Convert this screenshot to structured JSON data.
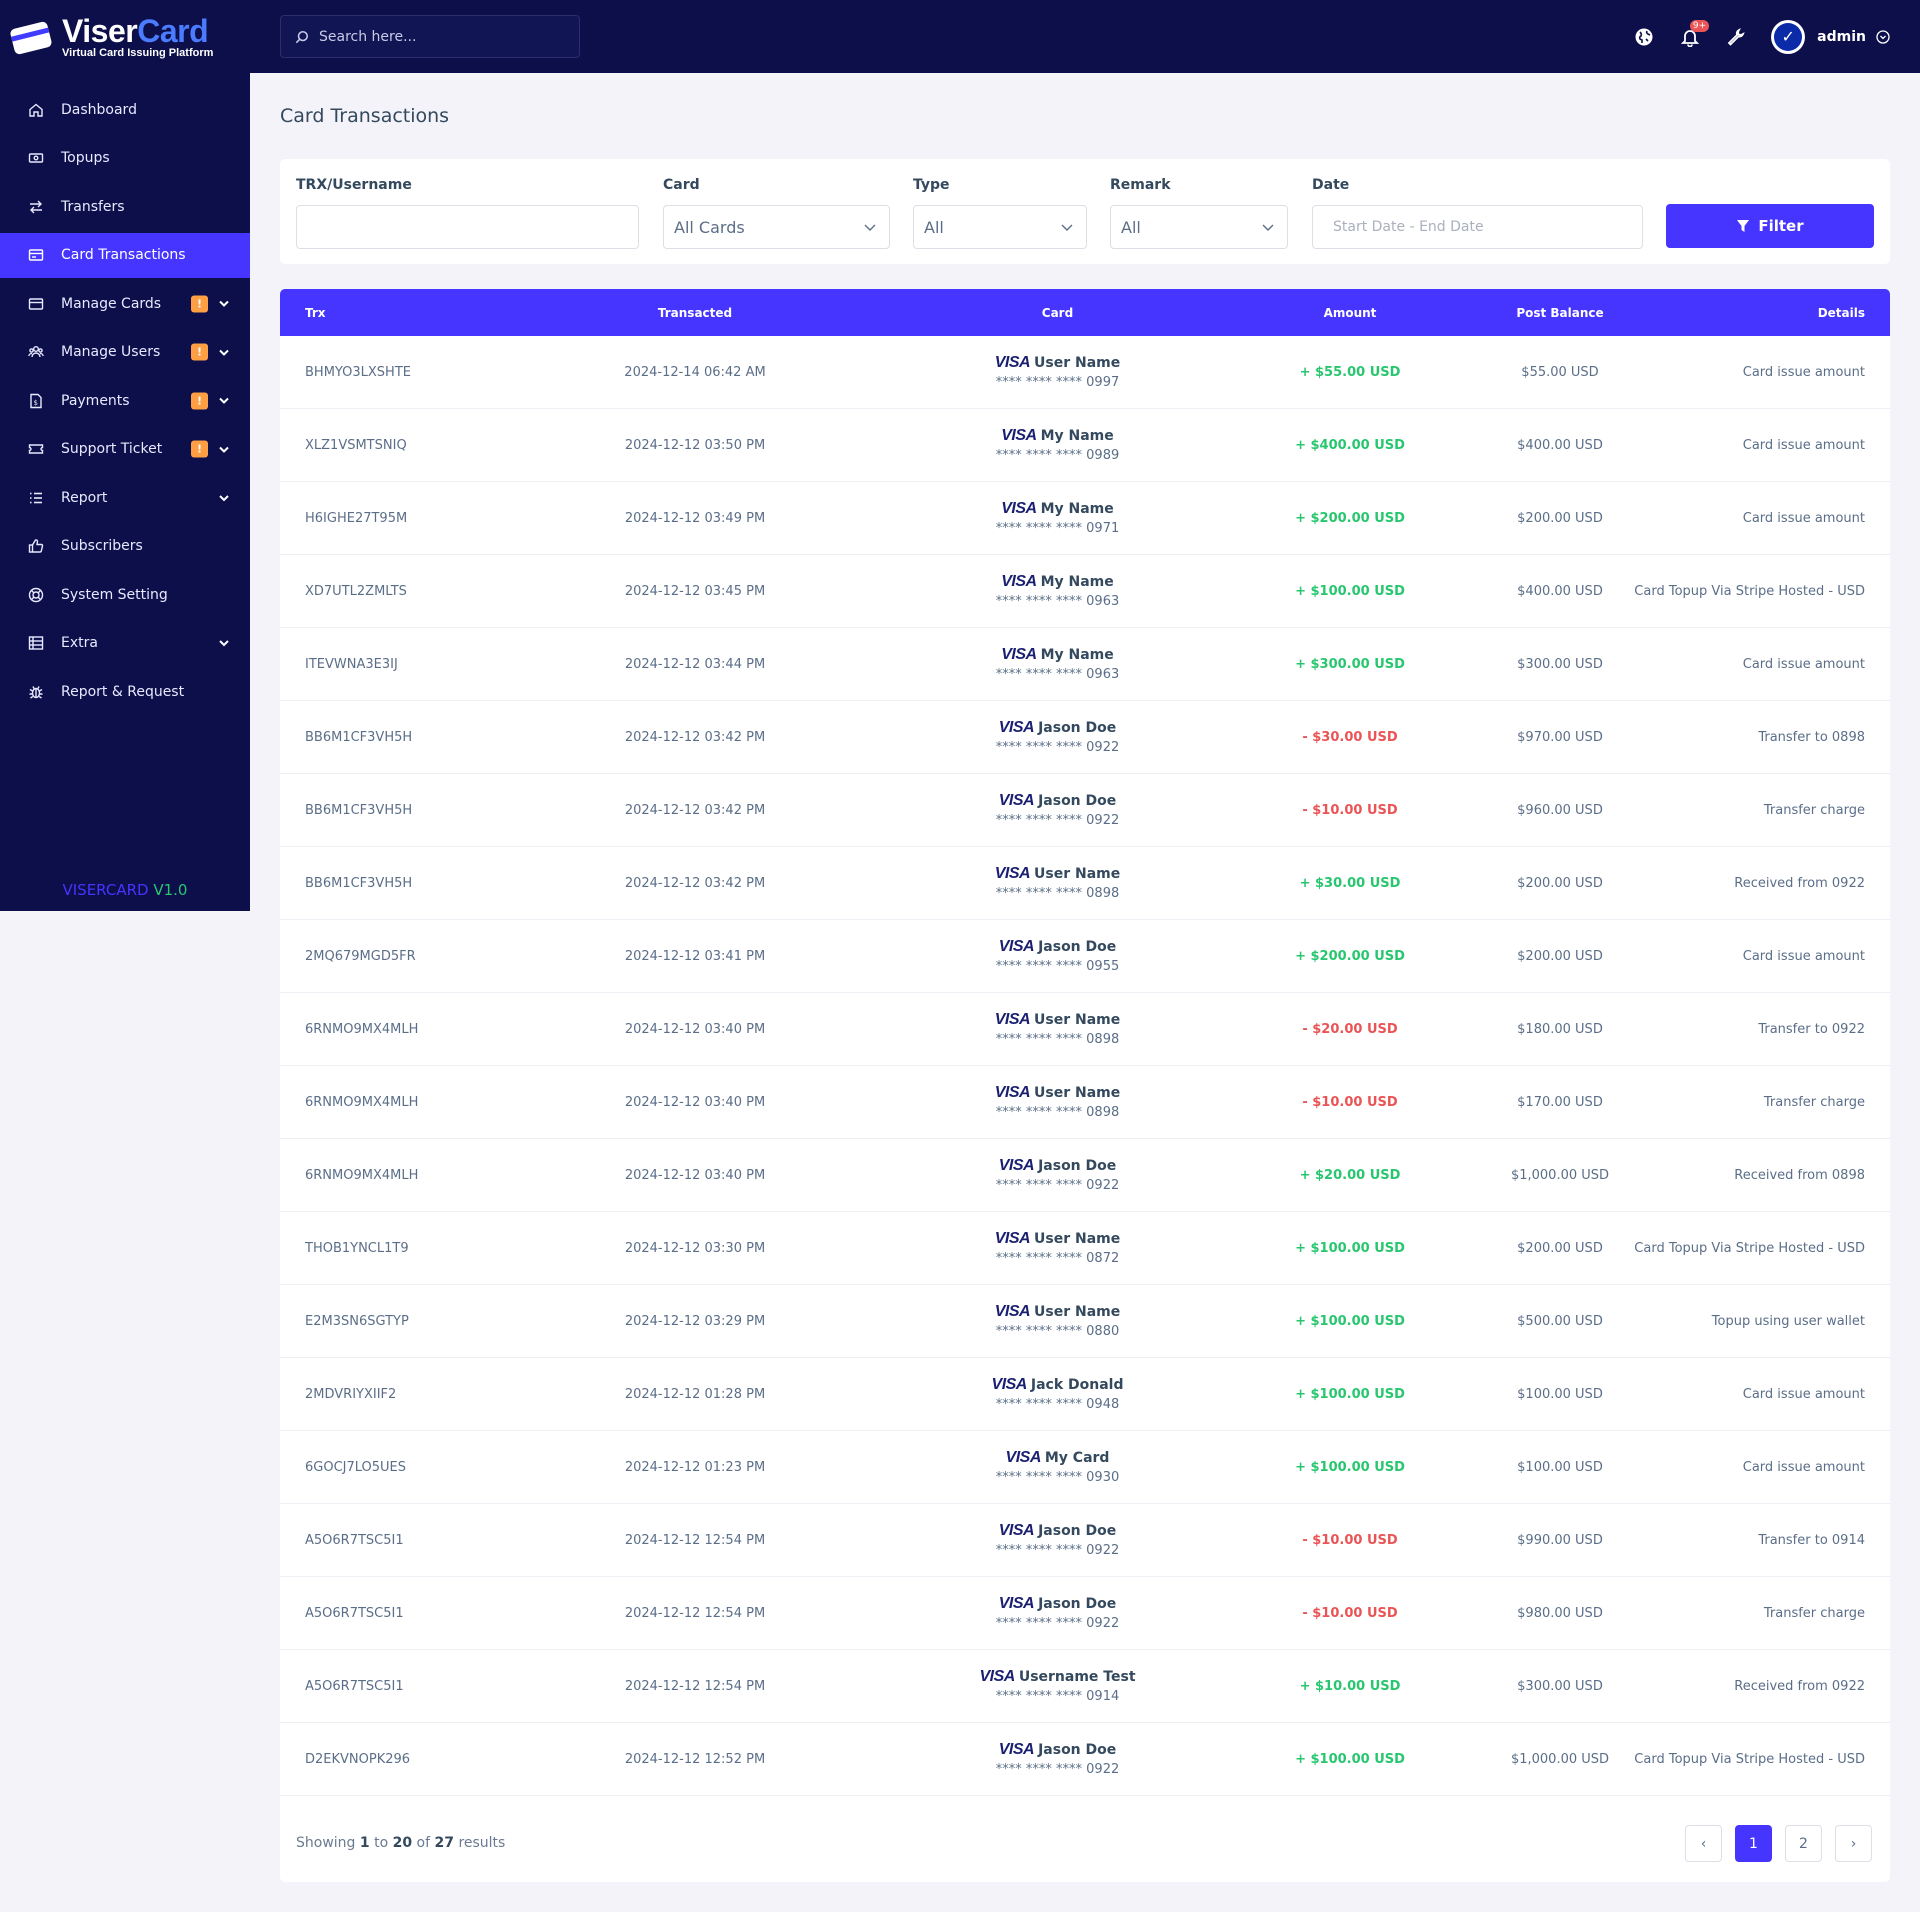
{
  "brand": {
    "name_part1": "Viser",
    "name_part2": "Card",
    "tagline": "Virtual Card Issuing Platform",
    "version_part1": "VISERCARD",
    "version_part2": "V1.0",
    "accent_color": "#4634ff",
    "sidebar_color": "#0c0f4a"
  },
  "sidebar": {
    "items": [
      {
        "label": "Dashboard",
        "icon": "home-icon",
        "active": false,
        "badge": "",
        "has_chevron": false
      },
      {
        "label": "Topups",
        "icon": "money-icon",
        "active": false,
        "badge": "",
        "has_chevron": false
      },
      {
        "label": "Transfers",
        "icon": "exchange-icon",
        "active": false,
        "badge": "",
        "has_chevron": false
      },
      {
        "label": "Card Transactions",
        "icon": "card-list-icon",
        "active": true,
        "badge": "",
        "has_chevron": false
      },
      {
        "label": "Manage Cards",
        "icon": "credit-card-icon",
        "active": false,
        "badge": "!",
        "has_chevron": true
      },
      {
        "label": "Manage Users",
        "icon": "users-icon",
        "active": false,
        "badge": "!",
        "has_chevron": true
      },
      {
        "label": "Payments",
        "icon": "payment-icon",
        "active": false,
        "badge": "!",
        "has_chevron": true
      },
      {
        "label": "Support Ticket",
        "icon": "ticket-icon",
        "active": false,
        "badge": "!",
        "has_chevron": true
      },
      {
        "label": "Report",
        "icon": "list-icon",
        "active": false,
        "badge": "",
        "has_chevron": true
      },
      {
        "label": "Subscribers",
        "icon": "thumbs-up-icon",
        "active": false,
        "badge": "",
        "has_chevron": false
      },
      {
        "label": "System Setting",
        "icon": "life-ring-icon",
        "active": false,
        "badge": "",
        "has_chevron": false
      },
      {
        "label": "Extra",
        "icon": "server-icon",
        "active": false,
        "badge": "",
        "has_chevron": true
      },
      {
        "label": "Report & Request",
        "icon": "bug-icon",
        "active": false,
        "badge": "",
        "has_chevron": false
      }
    ]
  },
  "topbar": {
    "search_placeholder": "Search here...",
    "notification_count": "9+",
    "username": "admin"
  },
  "page": {
    "title": "Card Transactions"
  },
  "filters": {
    "trx_label": "TRX/Username",
    "trx_value": "",
    "card_label": "Card",
    "card_value": "All Cards",
    "type_label": "Type",
    "type_value": "All",
    "remark_label": "Remark",
    "remark_value": "All",
    "date_label": "Date",
    "date_placeholder": "Start Date - End Date",
    "filter_button": "Filter"
  },
  "table": {
    "headers": [
      "Trx",
      "Transacted",
      "Card",
      "Amount",
      "Post Balance",
      "Details"
    ],
    "rows": [
      {
        "trx": "BHMYO3LXSHTE",
        "date": "2024-12-14 06:42 AM",
        "card_brand": "VISA",
        "card_name": "User Name",
        "card_number": "**** **** **** 0997",
        "amount": "+ $55.00 USD",
        "sign": "plus",
        "balance": "$55.00 USD",
        "details": "Card issue amount"
      },
      {
        "trx": "XLZ1VSMTSNIQ",
        "date": "2024-12-12 03:50 PM",
        "card_brand": "VISA",
        "card_name": "My Name",
        "card_number": "**** **** **** 0989",
        "amount": "+ $400.00 USD",
        "sign": "plus",
        "balance": "$400.00 USD",
        "details": "Card issue amount"
      },
      {
        "trx": "H6IGHE27T95M",
        "date": "2024-12-12 03:49 PM",
        "card_brand": "VISA",
        "card_name": "My Name",
        "card_number": "**** **** **** 0971",
        "amount": "+ $200.00 USD",
        "sign": "plus",
        "balance": "$200.00 USD",
        "details": "Card issue amount"
      },
      {
        "trx": "XD7UTL2ZMLTS",
        "date": "2024-12-12 03:45 PM",
        "card_brand": "VISA",
        "card_name": "My Name",
        "card_number": "**** **** **** 0963",
        "amount": "+ $100.00 USD",
        "sign": "plus",
        "balance": "$400.00 USD",
        "details": "Card Topup Via Stripe Hosted - USD"
      },
      {
        "trx": "ITEVWNA3E3IJ",
        "date": "2024-12-12 03:44 PM",
        "card_brand": "VISA",
        "card_name": "My Name",
        "card_number": "**** **** **** 0963",
        "amount": "+ $300.00 USD",
        "sign": "plus",
        "balance": "$300.00 USD",
        "details": "Card issue amount"
      },
      {
        "trx": "BB6M1CF3VH5H",
        "date": "2024-12-12 03:42 PM",
        "card_brand": "VISA",
        "card_name": "Jason Doe",
        "card_number": "**** **** **** 0922",
        "amount": "- $30.00 USD",
        "sign": "minus",
        "balance": "$970.00 USD",
        "details": "Transfer to 0898"
      },
      {
        "trx": "BB6M1CF3VH5H",
        "date": "2024-12-12 03:42 PM",
        "card_brand": "VISA",
        "card_name": "Jason Doe",
        "card_number": "**** **** **** 0922",
        "amount": "- $10.00 USD",
        "sign": "minus",
        "balance": "$960.00 USD",
        "details": "Transfer charge"
      },
      {
        "trx": "BB6M1CF3VH5H",
        "date": "2024-12-12 03:42 PM",
        "card_brand": "VISA",
        "card_name": "User Name",
        "card_number": "**** **** **** 0898",
        "amount": "+ $30.00 USD",
        "sign": "plus",
        "balance": "$200.00 USD",
        "details": "Received from 0922"
      },
      {
        "trx": "2MQ679MGD5FR",
        "date": "2024-12-12 03:41 PM",
        "card_brand": "VISA",
        "card_name": "Jason Doe",
        "card_number": "**** **** **** 0955",
        "amount": "+ $200.00 USD",
        "sign": "plus",
        "balance": "$200.00 USD",
        "details": "Card issue amount"
      },
      {
        "trx": "6RNMO9MX4MLH",
        "date": "2024-12-12 03:40 PM",
        "card_brand": "VISA",
        "card_name": "User Name",
        "card_number": "**** **** **** 0898",
        "amount": "- $20.00 USD",
        "sign": "minus",
        "balance": "$180.00 USD",
        "details": "Transfer to 0922"
      },
      {
        "trx": "6RNMO9MX4MLH",
        "date": "2024-12-12 03:40 PM",
        "card_brand": "VISA",
        "card_name": "User Name",
        "card_number": "**** **** **** 0898",
        "amount": "- $10.00 USD",
        "sign": "minus",
        "balance": "$170.00 USD",
        "details": "Transfer charge"
      },
      {
        "trx": "6RNMO9MX4MLH",
        "date": "2024-12-12 03:40 PM",
        "card_brand": "VISA",
        "card_name": "Jason Doe",
        "card_number": "**** **** **** 0922",
        "amount": "+ $20.00 USD",
        "sign": "plus",
        "balance": "$1,000.00 USD",
        "details": "Received from 0898"
      },
      {
        "trx": "THOB1YNCL1T9",
        "date": "2024-12-12 03:30 PM",
        "card_brand": "VISA",
        "card_name": "User Name",
        "card_number": "**** **** **** 0872",
        "amount": "+ $100.00 USD",
        "sign": "plus",
        "balance": "$200.00 USD",
        "details": "Card Topup Via Stripe Hosted - USD"
      },
      {
        "trx": "E2M3SN6SGTYP",
        "date": "2024-12-12 03:29 PM",
        "card_brand": "VISA",
        "card_name": "User Name",
        "card_number": "**** **** **** 0880",
        "amount": "+ $100.00 USD",
        "sign": "plus",
        "balance": "$500.00 USD",
        "details": "Topup using user wallet"
      },
      {
        "trx": "2MDVRIYXIIF2",
        "date": "2024-12-12 01:28 PM",
        "card_brand": "VISA",
        "card_name": "Jack Donald",
        "card_number": "**** **** **** 0948",
        "amount": "+ $100.00 USD",
        "sign": "plus",
        "balance": "$100.00 USD",
        "details": "Card issue amount"
      },
      {
        "trx": "6GOCJ7LO5UES",
        "date": "2024-12-12 01:23 PM",
        "card_brand": "VISA",
        "card_name": "My Card",
        "card_number": "**** **** **** 0930",
        "amount": "+ $100.00 USD",
        "sign": "plus",
        "balance": "$100.00 USD",
        "details": "Card issue amount"
      },
      {
        "trx": "A5O6R7TSC5I1",
        "date": "2024-12-12 12:54 PM",
        "card_brand": "VISA",
        "card_name": "Jason Doe",
        "card_number": "**** **** **** 0922",
        "amount": "- $10.00 USD",
        "sign": "minus",
        "balance": "$990.00 USD",
        "details": "Transfer to 0914"
      },
      {
        "trx": "A5O6R7TSC5I1",
        "date": "2024-12-12 12:54 PM",
        "card_brand": "VISA",
        "card_name": "Jason Doe",
        "card_number": "**** **** **** 0922",
        "amount": "- $10.00 USD",
        "sign": "minus",
        "balance": "$980.00 USD",
        "details": "Transfer charge"
      },
      {
        "trx": "A5O6R7TSC5I1",
        "date": "2024-12-12 12:54 PM",
        "card_brand": "VISA",
        "card_name": "Username Test",
        "card_number": "**** **** **** 0914",
        "amount": "+ $10.00 USD",
        "sign": "plus",
        "balance": "$300.00 USD",
        "details": "Received from 0922"
      },
      {
        "trx": "D2EKVNOPK296",
        "date": "2024-12-12 12:52 PM",
        "card_brand": "VISA",
        "card_name": "Jason Doe",
        "card_number": "**** **** **** 0922",
        "amount": "+ $100.00 USD",
        "sign": "plus",
        "balance": "$1,000.00 USD",
        "details": "Card Topup Via Stripe Hosted - USD"
      }
    ]
  },
  "pagination": {
    "showing_prefix": "Showing",
    "from": "1",
    "to_word": "to",
    "to": "20",
    "of_word": "of",
    "total": "27",
    "suffix": "results",
    "prev": "‹",
    "pages": [
      "1",
      "2"
    ],
    "current": "1",
    "next": "›"
  },
  "colors": {
    "positive": "#28c76f",
    "negative": "#ea5455",
    "warning_badge": "#ff9f43"
  }
}
